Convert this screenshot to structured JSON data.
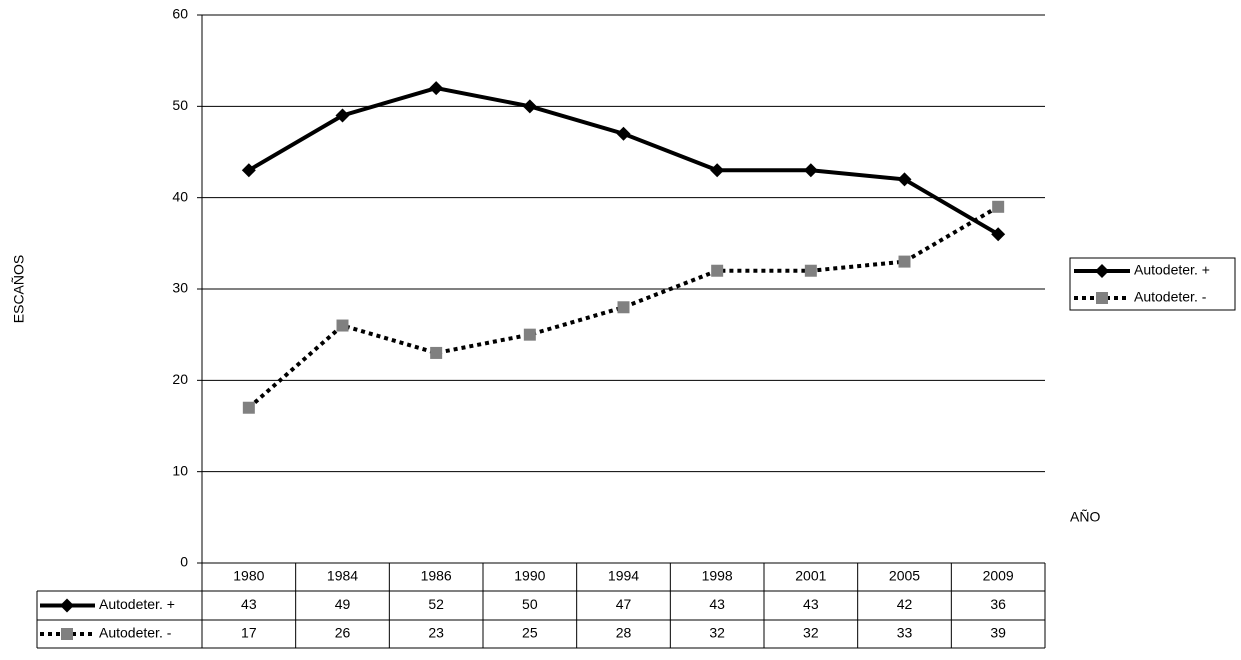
{
  "chart_data": {
    "type": "line",
    "y_label": "ESCAÑOS",
    "x_label": "AÑO",
    "categories": [
      "1980",
      "1984",
      "1986",
      "1990",
      "1994",
      "1998",
      "2001",
      "2005",
      "2009"
    ],
    "series": [
      {
        "name": "Autodeter. +",
        "color": "#000000",
        "marker_color": "#000000",
        "line_style": "solid",
        "marker": "diamond",
        "values": [
          43,
          49,
          52,
          50,
          47,
          43,
          43,
          42,
          36
        ]
      },
      {
        "name": "Autodeter. -",
        "color": "#000000",
        "marker_color": "#808080",
        "line_style": "dotted",
        "marker": "square",
        "values": [
          17,
          26,
          23,
          25,
          28,
          32,
          32,
          33,
          39
        ]
      }
    ],
    "ylim": [
      0,
      60
    ],
    "yticks": [
      0,
      10,
      20,
      30,
      40,
      50,
      60
    ],
    "grid": true,
    "legend": "right",
    "data_table": true
  }
}
